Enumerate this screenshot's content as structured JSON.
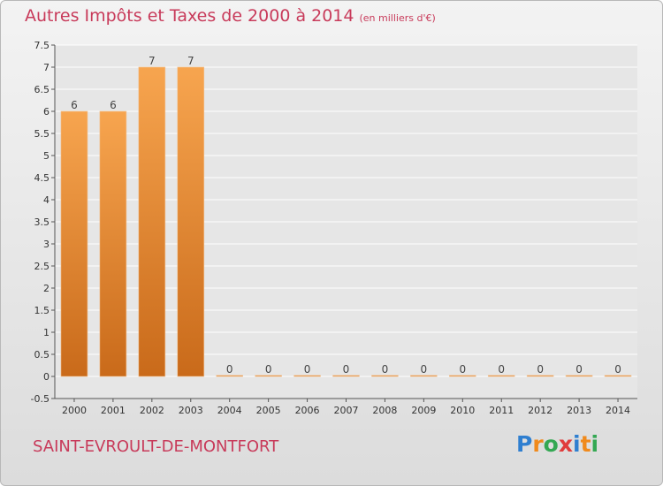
{
  "header": {
    "title": "Autres Impôts et Taxes de 2000 à 2014",
    "unit": "(en milliers d'€)"
  },
  "footer": {
    "commune": "SAINT-EVROULT-DE-MONTFORT",
    "logo": [
      "P",
      "r",
      "o",
      "x",
      "i",
      "t",
      "i"
    ],
    "logo_colors": [
      "#2f7fd0",
      "#f08a1c",
      "#34a853",
      "#e03c3c",
      "#2f7fd0",
      "#f08a1c",
      "#34a853"
    ]
  },
  "colors": {
    "bar_light": "#f7a54f",
    "bar_dark": "#c96a1a",
    "text": "#c83a5a",
    "grid": "#ffffff"
  },
  "chart_data": {
    "type": "bar",
    "title": "Autres Impôts et Taxes de 2000 à 2014",
    "categories": [
      "2000",
      "2001",
      "2002",
      "2003",
      "2004",
      "2005",
      "2006",
      "2007",
      "2008",
      "2009",
      "2010",
      "2011",
      "2012",
      "2013",
      "2014"
    ],
    "values": [
      6,
      6,
      7,
      7,
      0,
      0,
      0,
      0,
      0,
      0,
      0,
      0,
      0,
      0,
      0
    ],
    "value_labels": [
      "6",
      "6",
      "7",
      "7",
      "0",
      "0",
      "0",
      "0",
      "0",
      "0",
      "0",
      "0",
      "0",
      "0",
      "0"
    ],
    "y_ticks": [
      "-0.5",
      "0",
      "0.5",
      "1",
      "1.5",
      "2",
      "2.5",
      "3",
      "3.5",
      "4",
      "4.5",
      "5",
      "5.5",
      "6",
      "6.5",
      "7",
      "7.5"
    ],
    "ylim": [
      -0.5,
      7.5
    ],
    "grid": true,
    "xlabel": "",
    "ylabel": ""
  }
}
